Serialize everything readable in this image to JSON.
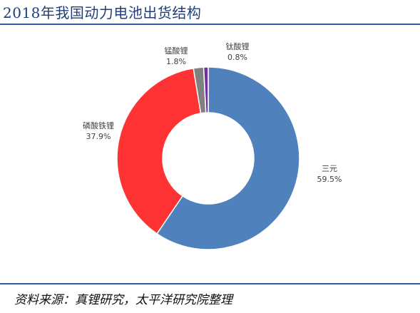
{
  "title": "2018年我国动力电池出货结构",
  "source": "资料来源：真锂研究，太平洋研究院整理",
  "chart_data": {
    "type": "pie",
    "donut": true,
    "title": "",
    "slices": [
      {
        "name": "三元",
        "value": 59.5,
        "label": "59.5%",
        "color": "#4F81BD"
      },
      {
        "name": "磷酸铁锂",
        "value": 37.9,
        "label": "37.9%",
        "color": "#FF3333"
      },
      {
        "name": "锰酸锂",
        "value": 1.8,
        "label": "1.8%",
        "color": "#808080"
      },
      {
        "name": "钛酸锂",
        "value": 0.8,
        "label": "0.8%",
        "color": "#7030A0"
      }
    ],
    "start_angle_deg": 0,
    "direction": "clockwise",
    "legend": "none",
    "data_labels": "outside"
  }
}
